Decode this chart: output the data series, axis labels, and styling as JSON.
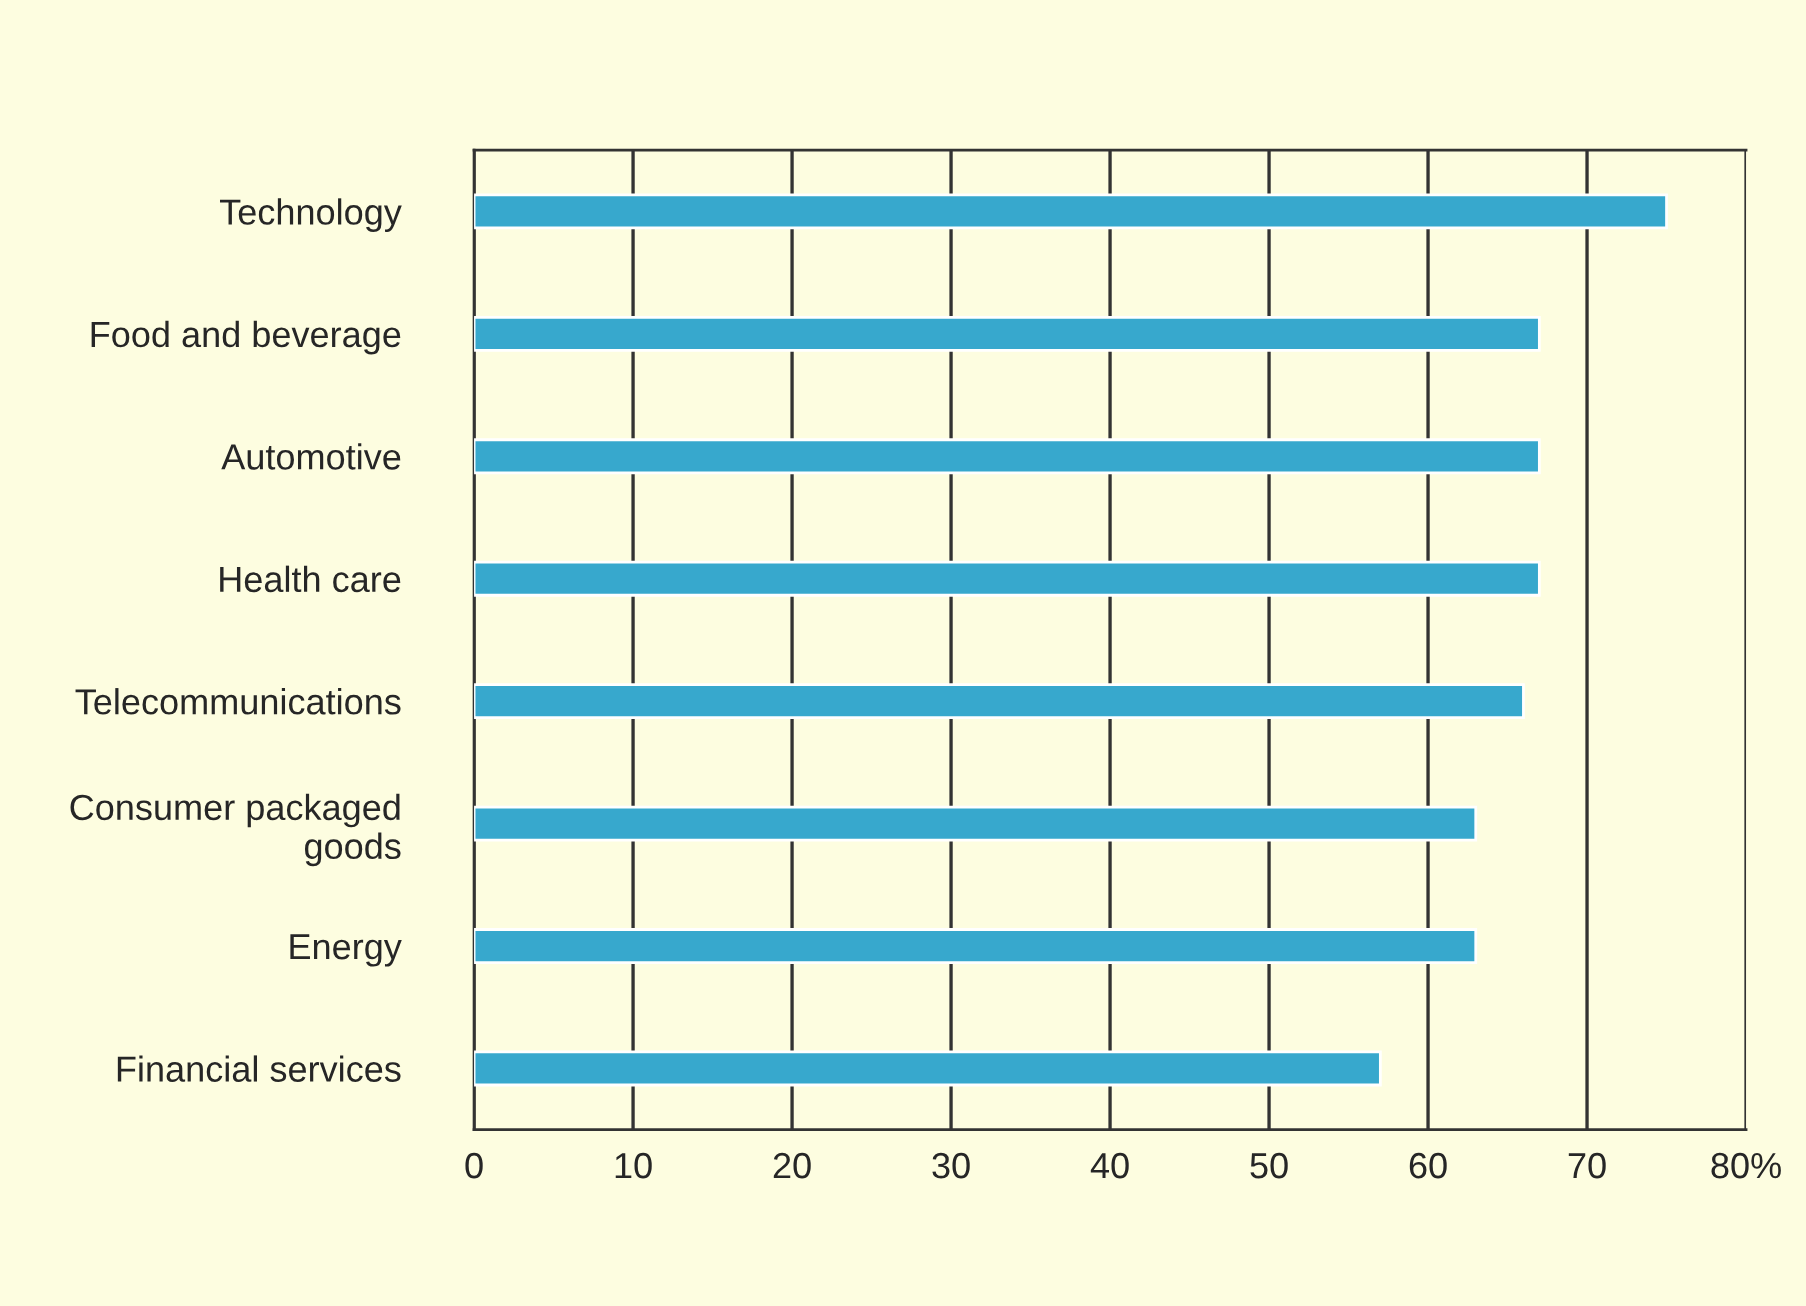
{
  "chart_data": {
    "type": "bar",
    "orientation": "horizontal",
    "categories": [
      "Technology",
      "Food and beverage",
      "Automotive",
      "Health care",
      "Telecommunications",
      "Consumer packaged\ngoods",
      "Energy",
      "Financial services"
    ],
    "series": [
      {
        "color": "#37a8cd",
        "values": [
          75,
          67,
          67,
          67,
          66,
          63,
          63,
          57
        ]
      }
    ],
    "xlim": [
      0,
      80
    ],
    "xticks": [
      0,
      10,
      20,
      30,
      40,
      50,
      60,
      70,
      {
        "value": 80,
        "label": "80%"
      }
    ],
    "grid": "x",
    "legend": false
  }
}
